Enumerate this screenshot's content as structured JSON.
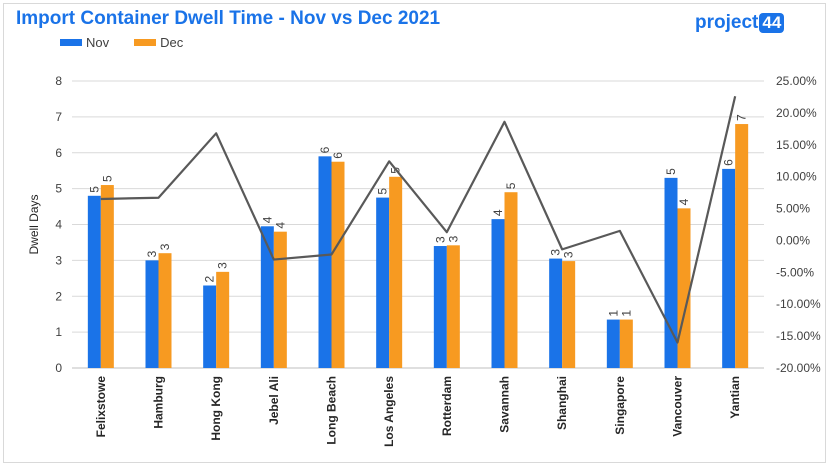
{
  "title": "Import Container Dwell Time - Nov vs Dec 2021",
  "logo": {
    "text": "project",
    "number": "44"
  },
  "colors": {
    "nov": "#1a73e8",
    "dec": "#f79a21",
    "line": "#595959",
    "grid": "#d9d9d9"
  },
  "chart_data": {
    "type": "bar",
    "categories": [
      "Felixstowe",
      "Hamburg",
      "Hong Kong",
      "Jebel Ali",
      "Long Beach",
      "Los Angeles",
      "Rotterdam",
      "Savannah",
      "Shanghai",
      "Singapore",
      "Vancouver",
      "Yantian"
    ],
    "series": [
      {
        "name": "Nov",
        "values": [
          4.8,
          3.0,
          2.3,
          3.95,
          5.9,
          4.75,
          3.4,
          4.15,
          3.05,
          1.35,
          5.3,
          5.55
        ],
        "labels": [
          "5",
          "3",
          "2",
          "4",
          "6",
          "5",
          "3",
          "4",
          "3",
          "1",
          "5",
          "6"
        ]
      },
      {
        "name": "Dec",
        "values": [
          5.1,
          3.2,
          2.68,
          3.8,
          5.75,
          5.33,
          3.42,
          4.9,
          2.98,
          1.35,
          4.45,
          6.8
        ],
        "labels": [
          "5",
          "3",
          "3",
          "4",
          "6",
          "5",
          "3",
          "5",
          "3",
          "1",
          "4",
          "7"
        ]
      }
    ],
    "line": {
      "type": "line",
      "axis": "secondary",
      "values": [
        0.065,
        0.067,
        0.168,
        -0.03,
        -0.022,
        0.124,
        0.013,
        0.186,
        -0.014,
        0.015,
        -0.16,
        0.226
      ]
    },
    "ylabel": "Dwell Days",
    "xlabel": "",
    "ylim": [
      0,
      8
    ],
    "yticks": [
      "0",
      "1",
      "2",
      "3",
      "4",
      "5",
      "6",
      "7",
      "8"
    ],
    "y2lim": [
      -0.2,
      0.25
    ],
    "y2ticks": [
      "-20.00%",
      "-15.00%",
      "-10.00%",
      "-5.00%",
      "0.00%",
      "5.00%",
      "10.00%",
      "15.00%",
      "20.00%",
      "25.00%"
    ],
    "grid": true,
    "legend": "top-left"
  }
}
